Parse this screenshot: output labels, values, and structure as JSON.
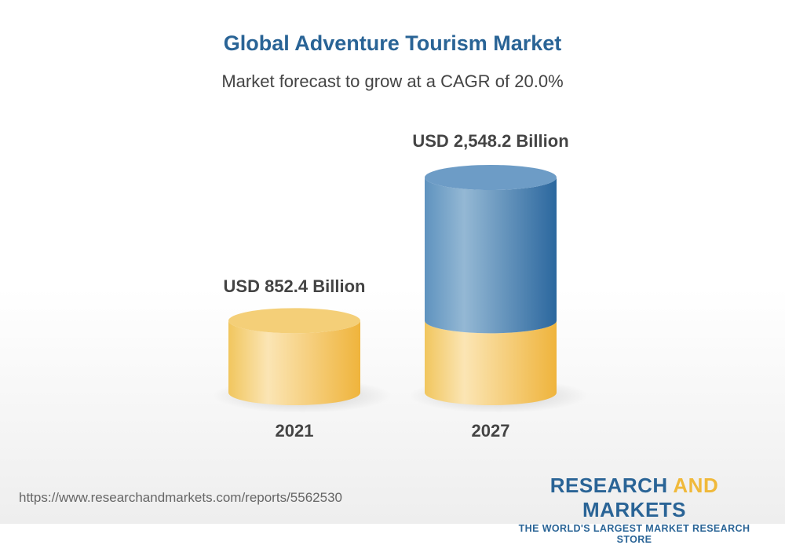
{
  "header": {
    "title": "Global Adventure Tourism Market",
    "subtitle": "Market forecast to grow at a CAGR of 20.0%"
  },
  "chart_data": {
    "type": "bar",
    "style": "3d-cylinder",
    "categories": [
      "2021",
      "2027"
    ],
    "values": [
      852.4,
      2548.2
    ],
    "data_labels": [
      "USD 852.4 Billion",
      "USD 2,548.2 Billion"
    ],
    "unit": "USD Billion",
    "title": "Global Adventure Tourism Market",
    "subtitle": "Market forecast to grow at a CAGR of 20.0%",
    "xlabel": "",
    "ylabel": "",
    "grid": false,
    "colors": {
      "base": "#f2c15a",
      "growth": "#2e6da4"
    }
  },
  "footer": {
    "url": "https://www.researchandmarkets.com/reports/5562530",
    "logo_part1": "RESEARCH ",
    "logo_part2": "AND",
    "logo_part3": " MARKETS",
    "logo_tagline": "THE WORLD'S LARGEST MARKET RESEARCH STORE"
  }
}
